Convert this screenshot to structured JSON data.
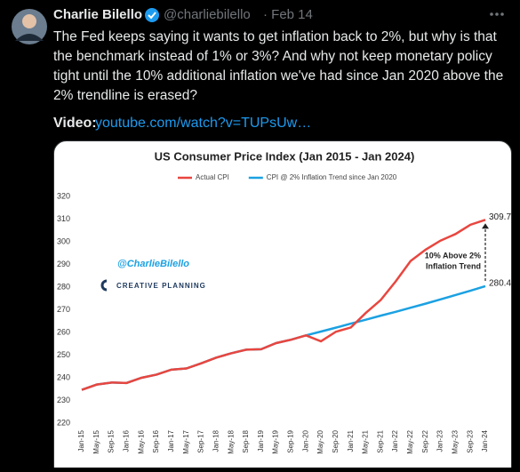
{
  "tweet": {
    "author": "Charlie Bilello",
    "handle": "@charliebilello",
    "date": "· Feb 14",
    "text": [
      "The Fed keeps saying it wants to get inflation back to 2%, but why is that",
      "the benchmark instead of 1% or 3%? And why not keep monetary policy",
      "tight until the 10% additional inflation we've had since Jan 2020 above the",
      "2% trendline is erased?"
    ],
    "video_label": "Video:",
    "video_link": "youtube.com/watch?v=TUPsUw…"
  },
  "chart_data": {
    "type": "line",
    "title": "US Consumer Price Index (Jan 2015 - Jan 2024)",
    "categories": [
      "Jan-15",
      "May-15",
      "Sep-15",
      "Jan-16",
      "May-16",
      "Sep-16",
      "Jan-17",
      "May-17",
      "Sep-17",
      "Jan-18",
      "May-18",
      "Sep-18",
      "Jan-19",
      "May-19",
      "Sep-19",
      "Jan-20",
      "May-20",
      "Sep-20",
      "Jan-21",
      "May-21",
      "Sep-21",
      "Jan-22",
      "May-22",
      "Sep-22",
      "Jan-23",
      "May-23",
      "Sep-23",
      "Jan-24"
    ],
    "series": [
      {
        "name": "Actual CPI",
        "color": "#e8463f",
        "values": [
          234.7,
          237.0,
          237.9,
          237.7,
          240.0,
          241.4,
          243.6,
          244.1,
          246.4,
          248.9,
          250.8,
          252.4,
          252.6,
          255.3,
          256.8,
          258.7,
          256.1,
          260.3,
          262.2,
          268.6,
          274.3,
          282.5,
          291.5,
          296.5,
          300.5,
          303.4,
          307.5,
          309.7
        ]
      },
      {
        "name": "CPI @ 2% Inflation Trend since Jan 2020",
        "color": "#1ba1e2",
        "values": [
          234.7,
          237.0,
          237.9,
          237.7,
          240.0,
          241.4,
          243.6,
          244.1,
          246.4,
          248.9,
          250.8,
          252.4,
          252.6,
          255.3,
          256.8,
          258.7,
          260.4,
          262.1,
          263.9,
          265.6,
          267.4,
          269.1,
          270.9,
          272.7,
          274.6,
          276.5,
          278.4,
          280.4
        ]
      }
    ],
    "ylim": [
      220,
      320
    ],
    "yticks": [
      220,
      230,
      240,
      250,
      260,
      270,
      280,
      290,
      300,
      310,
      320
    ],
    "annotation": [
      "10% Above 2%",
      "Inflation Trend"
    ],
    "watermark": "@CharlieBilello",
    "logo": "CREATIVE PLANNING"
  }
}
